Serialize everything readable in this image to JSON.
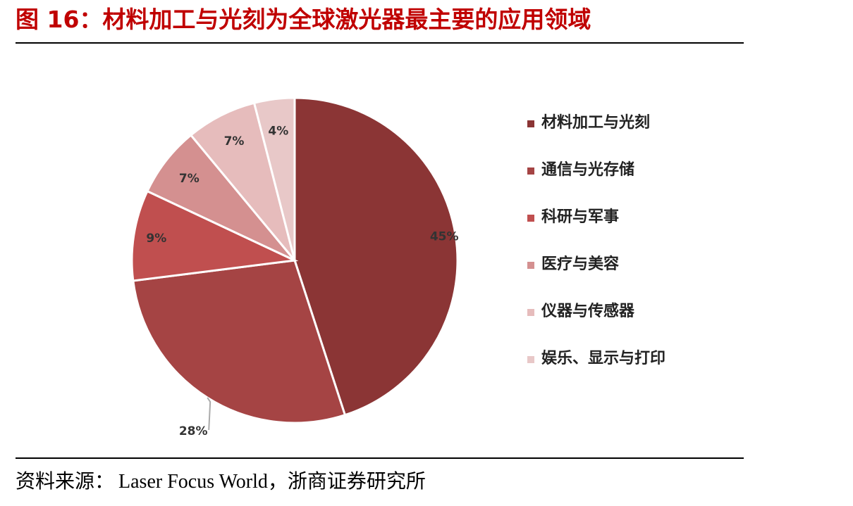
{
  "title": "图 16：材料加工与光刻为全球激光器最主要的应用领域",
  "source": {
    "label": "资料来源：",
    "text": "Laser Focus World，浙商证券研究所"
  },
  "chart_data": {
    "type": "pie",
    "title": "",
    "legend_position": "right",
    "label_format": "{v}%",
    "slices": [
      {
        "label": "材料加工与光刻",
        "value": 45,
        "color": "#8b3535"
      },
      {
        "label": "通信与光存储",
        "value": 28,
        "color": "#a54444"
      },
      {
        "label": "科研与军事",
        "value": 9,
        "color": "#c04f4f"
      },
      {
        "label": "医疗与美容",
        "value": 7,
        "color": "#d49090"
      },
      {
        "label": "仪器与传感器",
        "value": 7,
        "color": "#e6bcbc"
      },
      {
        "label": "娱乐、显示与打印",
        "value": 4,
        "color": "#e8c8c8"
      }
    ]
  }
}
